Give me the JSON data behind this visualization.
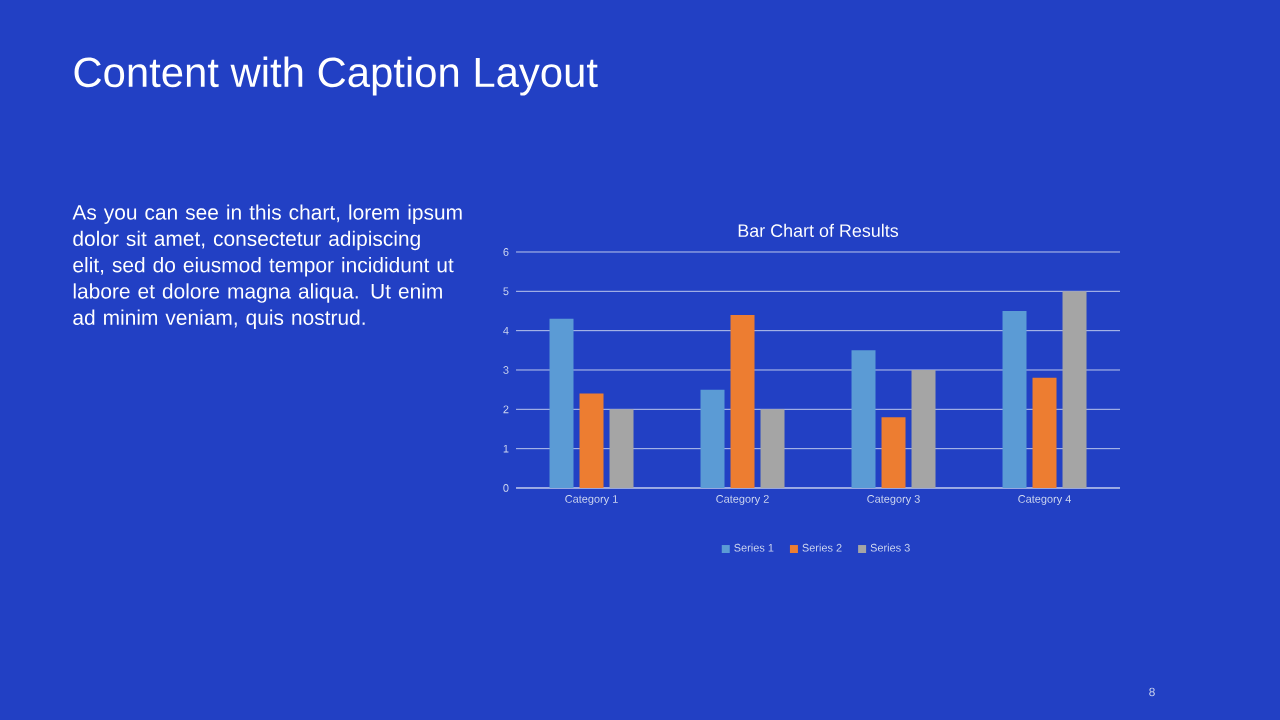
{
  "chart_data": {
    "type": "bar",
    "title": "Bar Chart of Results",
    "categories": [
      "Category 1",
      "Category 2",
      "Category 3",
      "Category 4"
    ],
    "series": [
      {
        "name": "Series 1",
        "color": "#5b9bd5",
        "values": [
          4.3,
          2.5,
          3.5,
          4.5
        ]
      },
      {
        "name": "Series 2",
        "color": "#ed7d31",
        "values": [
          2.4,
          4.4,
          1.8,
          2.8
        ]
      },
      {
        "name": "Series 3",
        "color": "#a5a5a5",
        "values": [
          2.0,
          2.0,
          3.0,
          5.0
        ]
      }
    ],
    "ylim": [
      0,
      6
    ],
    "yticks": [
      0,
      1,
      2,
      3,
      4,
      5,
      6
    ],
    "grid": "y",
    "legend": "bottom",
    "annotations": [
      "Content with Caption Layout",
      "As you can see in this chart, lorem ipsum dolor sit amet, consectetur adipiscing elit, sed do eiusmod tempor incididunt ut labore et dolore magna aliqua. Ut enim ad minim veniam, quis nostrud.",
      "8"
    ]
  }
}
